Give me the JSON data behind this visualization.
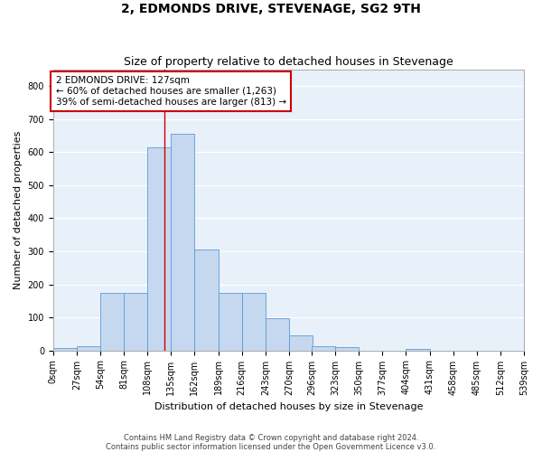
{
  "title": "2, EDMONDS DRIVE, STEVENAGE, SG2 9TH",
  "subtitle": "Size of property relative to detached houses in Stevenage",
  "xlabel": "Distribution of detached houses by size in Stevenage",
  "ylabel": "Number of detached properties",
  "bar_color": "#c5d8f0",
  "bar_edge_color": "#5b9bd5",
  "background_color": "#e8f0fa",
  "grid_color": "#ffffff",
  "annotation_line_color": "#cc0000",
  "annotation_box_color": "#cc0000",
  "annotation_text": "2 EDMONDS DRIVE: 127sqm\n← 60% of detached houses are smaller (1,263)\n39% of semi-detached houses are larger (813) →",
  "property_sqm": 127,
  "bin_edges": [
    0,
    27,
    54,
    81,
    108,
    135,
    162,
    189,
    216,
    243,
    270,
    296,
    323,
    350,
    377,
    404,
    431,
    458,
    485,
    512,
    539
  ],
  "bar_heights": [
    7,
    13,
    175,
    175,
    615,
    655,
    305,
    175,
    175,
    97,
    46,
    13,
    11,
    0,
    0,
    5,
    0,
    0,
    0,
    0
  ],
  "tick_labels": [
    "0sqm",
    "27sqm",
    "54sqm",
    "81sqm",
    "108sqm",
    "135sqm",
    "162sqm",
    "189sqm",
    "216sqm",
    "243sqm",
    "270sqm",
    "296sqm",
    "323sqm",
    "350sqm",
    "377sqm",
    "404sqm",
    "431sqm",
    "458sqm",
    "485sqm",
    "512sqm",
    "539sqm"
  ],
  "ylim": [
    0,
    850
  ],
  "yticks": [
    0,
    100,
    200,
    300,
    400,
    500,
    600,
    700,
    800
  ],
  "footnote": "Contains HM Land Registry data © Crown copyright and database right 2024.\nContains public sector information licensed under the Open Government Licence v3.0.",
  "title_fontsize": 10,
  "subtitle_fontsize": 9,
  "label_fontsize": 8,
  "tick_fontsize": 7,
  "annotation_fontsize": 7.5,
  "footnote_fontsize": 6
}
